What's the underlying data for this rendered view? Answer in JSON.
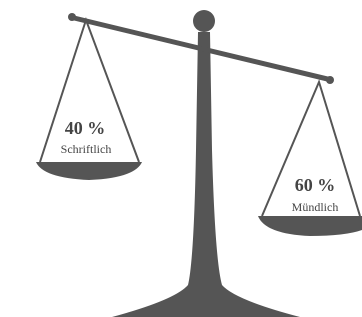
{
  "left_pan": {
    "share": "40 %",
    "label": "Schriftlich"
  },
  "right_pan": {
    "share": "60 %",
    "label": "Mündlich"
  }
}
